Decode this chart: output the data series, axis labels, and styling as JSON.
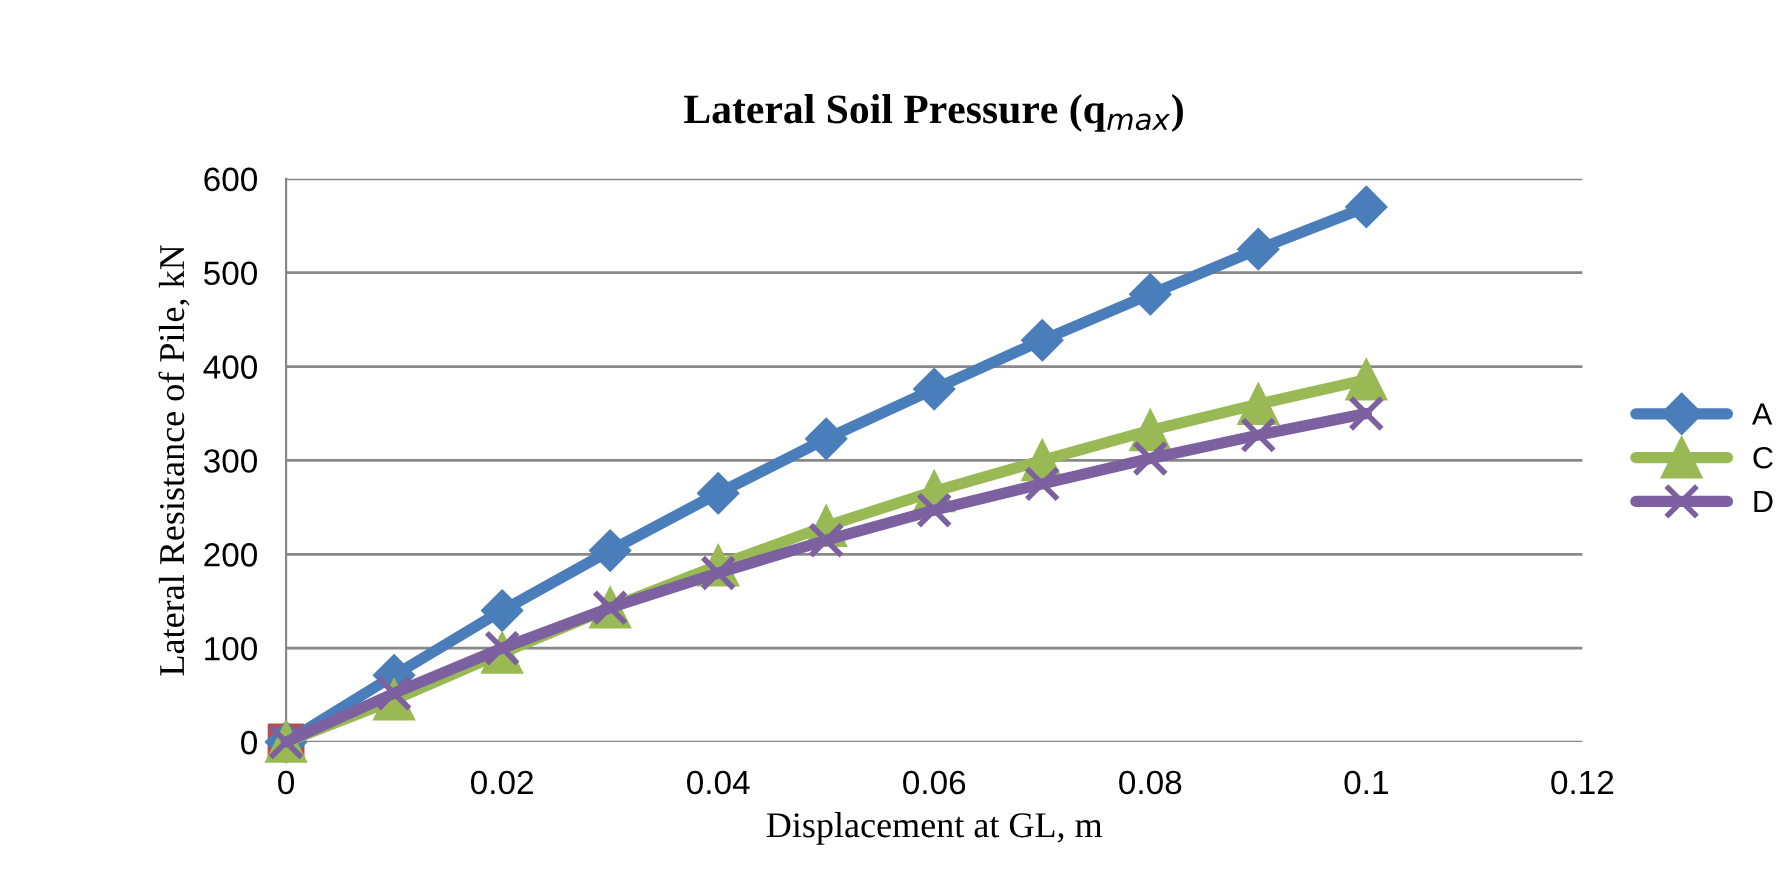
{
  "chart_data": {
    "type": "line",
    "title": "Lateral Soil Pressure (q$_{max}$)",
    "xlabel": "Displacement at GL, m",
    "ylabel": "Lateral Resistance of Pile, kN",
    "x": [
      0,
      0.01,
      0.02,
      0.03,
      0.04,
      0.05,
      0.06,
      0.07,
      0.08,
      0.09,
      0.1
    ],
    "series": [
      {
        "name": "A",
        "color": "#4a7ebb",
        "marker": "diamond",
        "values": [
          0,
          71,
          140,
          204,
          265,
          323,
          376,
          428,
          477,
          525,
          570
        ]
      },
      {
        "type": "scatter",
        "color": "#be4b48",
        "marker": "square",
        "x": [
          0
        ],
        "values": [
          0
        ]
      },
      {
        "name": "C",
        "color": "#98b954",
        "marker": "triangle",
        "values": [
          0,
          45,
          95,
          143,
          188,
          230,
          267,
          300,
          332,
          360,
          386
        ]
      },
      {
        "name": "D",
        "color": "#7d60a0",
        "marker": "cross",
        "values": [
          0,
          52,
          100,
          143,
          180,
          215,
          247,
          275,
          302,
          327,
          350
        ]
      }
    ],
    "xlim": [
      0,
      0.12
    ],
    "xticks": [
      0,
      0.02,
      0.04,
      0.06,
      0.08,
      0.1,
      0.12
    ],
    "ylim": [
      0,
      600
    ],
    "yticks": [
      0,
      100,
      200,
      300,
      400,
      500,
      600
    ],
    "grid": "y",
    "legend": "right"
  }
}
